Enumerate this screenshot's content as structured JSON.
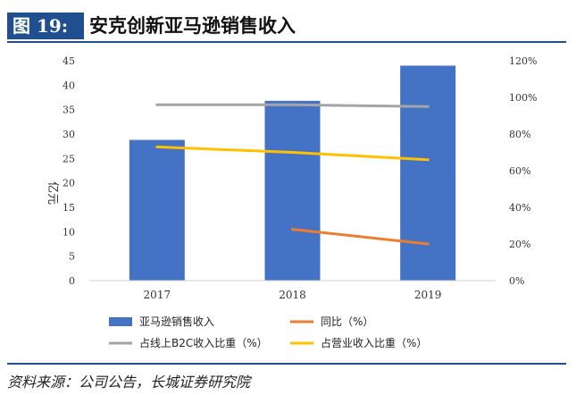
{
  "header": {
    "figure_label": "图 19:",
    "title": "安克创新亚马逊销售收入"
  },
  "footer": {
    "source": "资料来源：公司公告，长城证券研究院"
  },
  "chart_data": {
    "type": "bar",
    "categories": [
      "2017",
      "2018",
      "2019"
    ],
    "ylabel_left": "亿元",
    "ylim_left": [
      0,
      45
    ],
    "yticks_left": [
      "0",
      "5",
      "10",
      "15",
      "20",
      "25",
      "30",
      "35",
      "40",
      "45"
    ],
    "ylim_right": [
      0,
      120
    ],
    "yticks_right": [
      "0%",
      "20%",
      "40%",
      "60%",
      "80%",
      "100%",
      "120%"
    ],
    "series": [
      {
        "name": "亚马逊销售收入",
        "kind": "bar",
        "axis": "left",
        "color": "#4472c4",
        "values": [
          28.8,
          36.8,
          44.0
        ]
      },
      {
        "name": "同比（%）",
        "kind": "line",
        "axis": "right",
        "color": "#ed7d31",
        "values": [
          null,
          28,
          20
        ]
      },
      {
        "name": "占线上B2C收入比重（%）",
        "kind": "line",
        "axis": "right",
        "color": "#a5a5a5",
        "values": [
          96,
          96,
          95
        ]
      },
      {
        "name": "占营业收入比重（%）",
        "kind": "line",
        "axis": "right",
        "color": "#ffc000",
        "values": [
          73,
          70,
          66
        ]
      }
    ],
    "legend_position": "bottom"
  }
}
